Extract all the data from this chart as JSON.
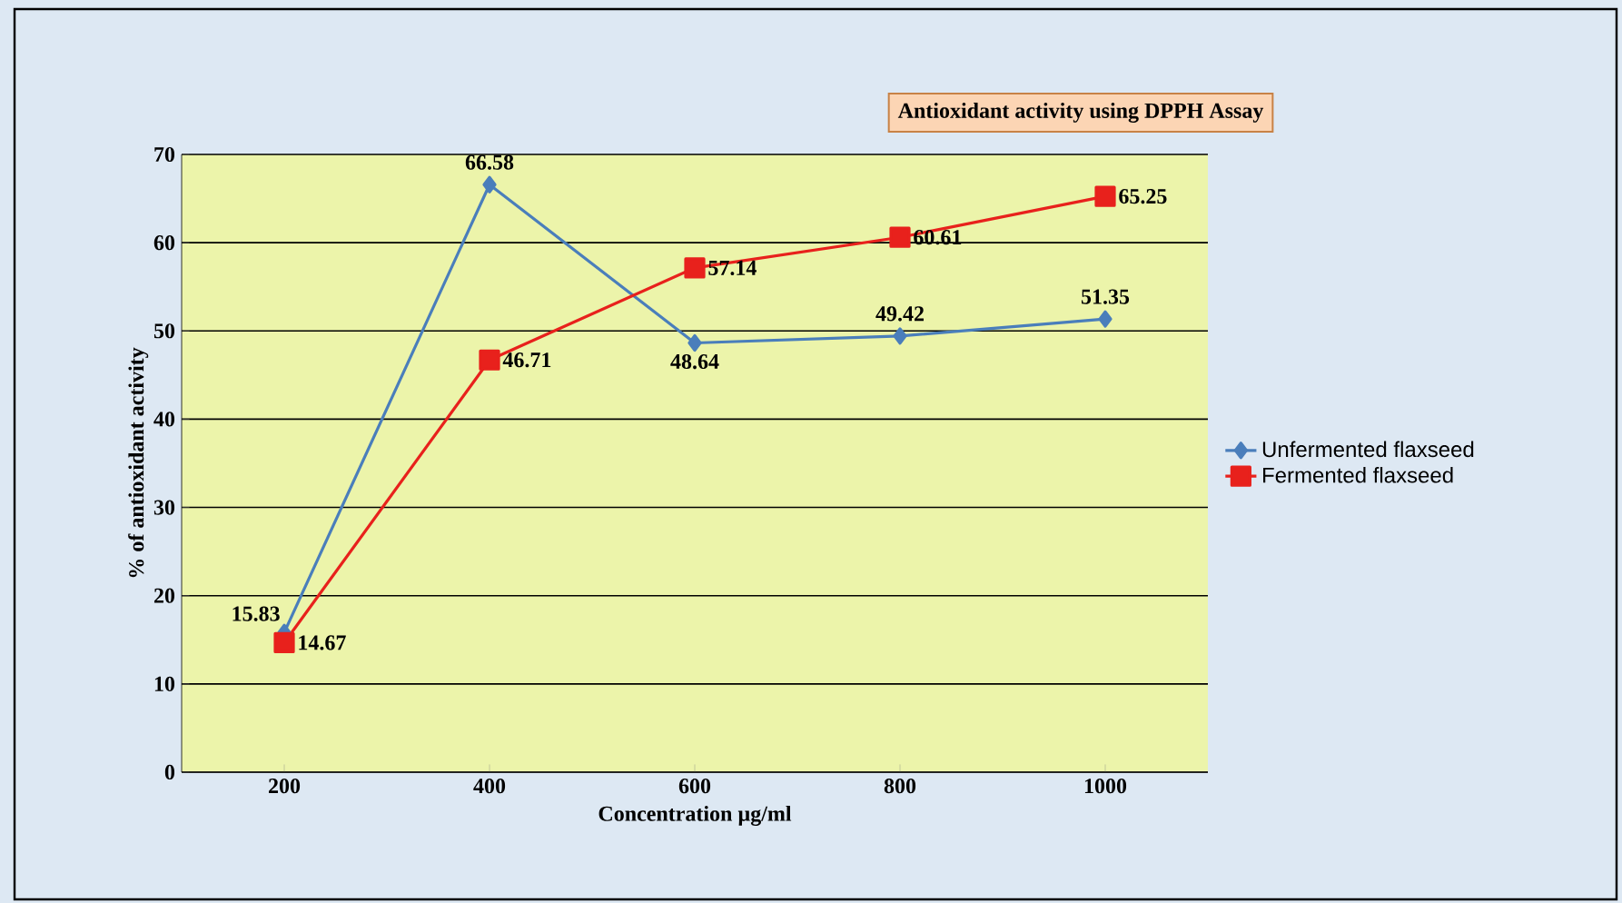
{
  "chart_data": {
    "type": "line",
    "title": "Antioxidant  activity using DPPH Assay",
    "xlabel": "Concentration µg/ml",
    "ylabel": "% of antioxidant activity",
    "categories": [
      "200",
      "400",
      "600",
      "800",
      "1000"
    ],
    "series": [
      {
        "name": "Unfermented flaxseed",
        "color": "#4a7ebb",
        "marker": "diamond",
        "values": [
          15.83,
          66.58,
          48.64,
          49.42,
          51.35
        ]
      },
      {
        "name": "Fermented flaxseed",
        "color": "#e8211c",
        "marker": "square",
        "values": [
          14.67,
          46.71,
          57.14,
          60.61,
          65.25
        ]
      }
    ],
    "ylim": [
      0,
      70
    ],
    "yticks": [
      0,
      10,
      20,
      30,
      40,
      50,
      60,
      70
    ],
    "grid": "y",
    "legend": "right",
    "data_labels": true,
    "line_style": "solid"
  }
}
